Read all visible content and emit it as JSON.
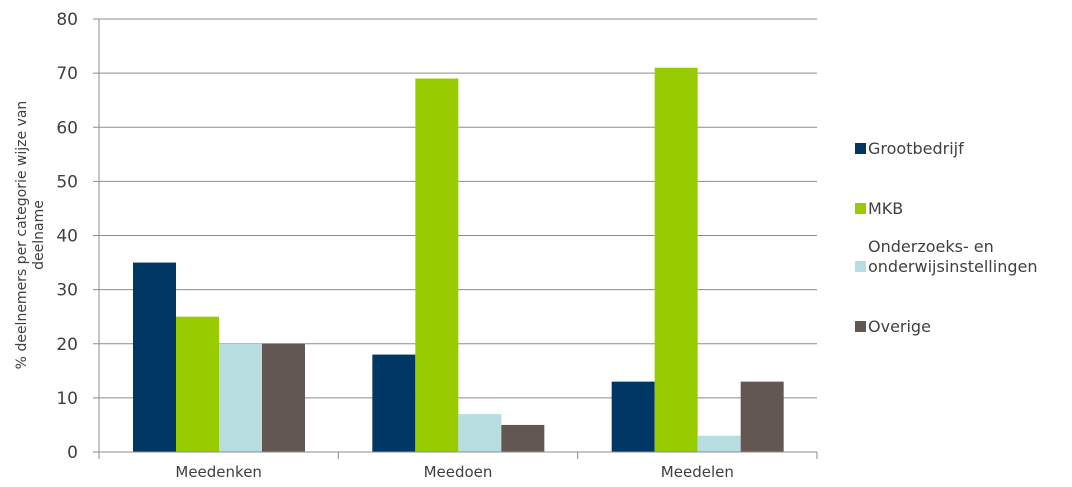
{
  "chart_data": {
    "type": "bar",
    "categories": [
      "Meedenken",
      "Meedoen",
      "Meedelen"
    ],
    "series": [
      {
        "name": "Grootbedrijf",
        "color": "#003764",
        "values": [
          35,
          18,
          13
        ]
      },
      {
        "name": "MKB",
        "color": "#99CC00",
        "values": [
          25,
          69,
          71
        ]
      },
      {
        "name": "Onderzoeks- en onderwijsinstellingen",
        "name_lines": [
          "Onderzoeks- en",
          "onderwijsinstellingen"
        ],
        "color": "#B7DDE1",
        "values": [
          20,
          7,
          3
        ]
      },
      {
        "name": "Overige",
        "color": "#635753",
        "values": [
          20,
          5,
          13
        ]
      }
    ],
    "title": "",
    "xlabel": "",
    "ylabel": "% deelnemers per categorie wijze van deelname",
    "ylabel_lines": [
      "% deelnemers per categorie wijze van",
      "deelname"
    ],
    "ylim": [
      0,
      80
    ],
    "yticks": [
      0,
      10,
      20,
      30,
      40,
      50,
      60,
      70,
      80
    ],
    "grid": true,
    "legend_position": "right"
  }
}
